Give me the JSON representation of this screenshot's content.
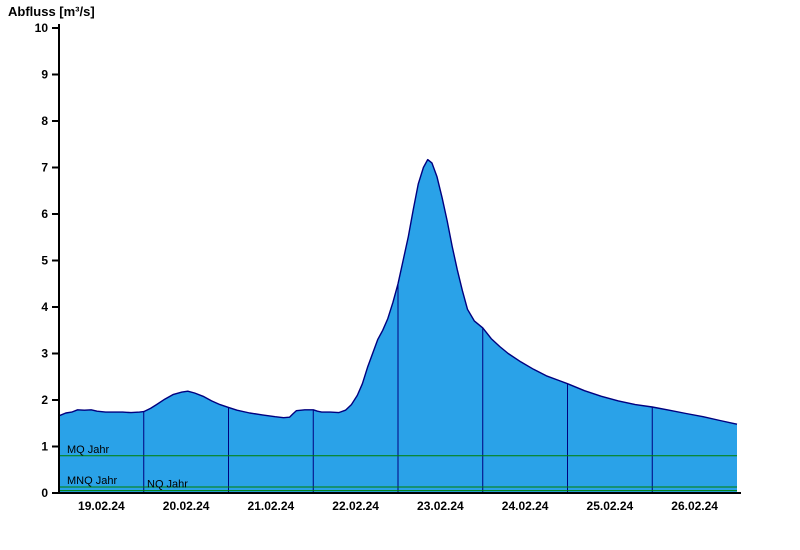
{
  "header": {
    "title": "Abfluss [m³/s]"
  },
  "chart_data": {
    "type": "area",
    "title": "Abfluss [m³/s]",
    "ylabel": "Abfluss [m³/s]",
    "xlabel": "",
    "ylim": [
      0,
      10
    ],
    "y_ticks": [
      0,
      1,
      2,
      3,
      4,
      5,
      6,
      7,
      8,
      9,
      10
    ],
    "x_tick_labels": [
      "19.02.24",
      "20.02.24",
      "21.02.24",
      "22.02.24",
      "23.02.24",
      "24.02.24",
      "25.02.24",
      "26.02.24"
    ],
    "x_range_days": [
      0,
      8
    ],
    "grid": "vertical-day-boundaries",
    "legend_position": "none",
    "series": [
      {
        "name": "Abfluss",
        "unit": "m³/s",
        "points": [
          [
            0.0,
            1.66
          ],
          [
            0.08,
            1.72
          ],
          [
            0.15,
            1.74
          ],
          [
            0.22,
            1.79
          ],
          [
            0.3,
            1.78
          ],
          [
            0.38,
            1.79
          ],
          [
            0.45,
            1.76
          ],
          [
            0.55,
            1.74
          ],
          [
            0.65,
            1.74
          ],
          [
            0.75,
            1.74
          ],
          [
            0.85,
            1.73
          ],
          [
            0.95,
            1.74
          ],
          [
            1.0,
            1.75
          ],
          [
            1.08,
            1.82
          ],
          [
            1.15,
            1.9
          ],
          [
            1.25,
            2.02
          ],
          [
            1.35,
            2.12
          ],
          [
            1.45,
            2.17
          ],
          [
            1.52,
            2.19
          ],
          [
            1.6,
            2.15
          ],
          [
            1.7,
            2.08
          ],
          [
            1.8,
            1.98
          ],
          [
            1.9,
            1.9
          ],
          [
            2.0,
            1.84
          ],
          [
            2.1,
            1.78
          ],
          [
            2.25,
            1.72
          ],
          [
            2.4,
            1.68
          ],
          [
            2.55,
            1.64
          ],
          [
            2.65,
            1.62
          ],
          [
            2.72,
            1.63
          ],
          [
            2.76,
            1.7
          ],
          [
            2.8,
            1.77
          ],
          [
            2.9,
            1.79
          ],
          [
            3.0,
            1.79
          ],
          [
            3.05,
            1.76
          ],
          [
            3.1,
            1.74
          ],
          [
            3.2,
            1.74
          ],
          [
            3.3,
            1.73
          ],
          [
            3.38,
            1.78
          ],
          [
            3.45,
            1.9
          ],
          [
            3.52,
            2.1
          ],
          [
            3.58,
            2.35
          ],
          [
            3.64,
            2.7
          ],
          [
            3.7,
            3.0
          ],
          [
            3.76,
            3.3
          ],
          [
            3.82,
            3.5
          ],
          [
            3.88,
            3.75
          ],
          [
            3.94,
            4.1
          ],
          [
            4.0,
            4.5
          ],
          [
            4.06,
            5.0
          ],
          [
            4.12,
            5.5
          ],
          [
            4.18,
            6.1
          ],
          [
            4.24,
            6.65
          ],
          [
            4.3,
            7.0
          ],
          [
            4.35,
            7.17
          ],
          [
            4.4,
            7.1
          ],
          [
            4.46,
            6.8
          ],
          [
            4.52,
            6.35
          ],
          [
            4.58,
            5.85
          ],
          [
            4.64,
            5.3
          ],
          [
            4.7,
            4.8
          ],
          [
            4.76,
            4.35
          ],
          [
            4.82,
            3.95
          ],
          [
            4.9,
            3.7
          ],
          [
            5.0,
            3.55
          ],
          [
            5.1,
            3.32
          ],
          [
            5.2,
            3.15
          ],
          [
            5.3,
            3.0
          ],
          [
            5.45,
            2.82
          ],
          [
            5.6,
            2.66
          ],
          [
            5.75,
            2.52
          ],
          [
            5.9,
            2.42
          ],
          [
            6.0,
            2.35
          ],
          [
            6.2,
            2.2
          ],
          [
            6.4,
            2.08
          ],
          [
            6.6,
            1.98
          ],
          [
            6.8,
            1.9
          ],
          [
            7.0,
            1.85
          ],
          [
            7.2,
            1.78
          ],
          [
            7.4,
            1.71
          ],
          [
            7.6,
            1.64
          ],
          [
            7.8,
            1.56
          ],
          [
            7.95,
            1.5
          ],
          [
            8.0,
            1.48
          ]
        ]
      }
    ],
    "reference_lines": [
      {
        "label": "MQ Jahr",
        "value": 0.8,
        "color": "#008000"
      },
      {
        "label": "MNQ Jahr",
        "value": 0.13,
        "color": "#008000"
      },
      {
        "label": "NQ Jahr",
        "value": 0.05,
        "color": "#008000"
      }
    ],
    "colors": {
      "fill": "#2aa2e8",
      "line": "#00007f",
      "grid": "#00007f",
      "axis": "#000000",
      "reference_default": "#008000"
    }
  }
}
